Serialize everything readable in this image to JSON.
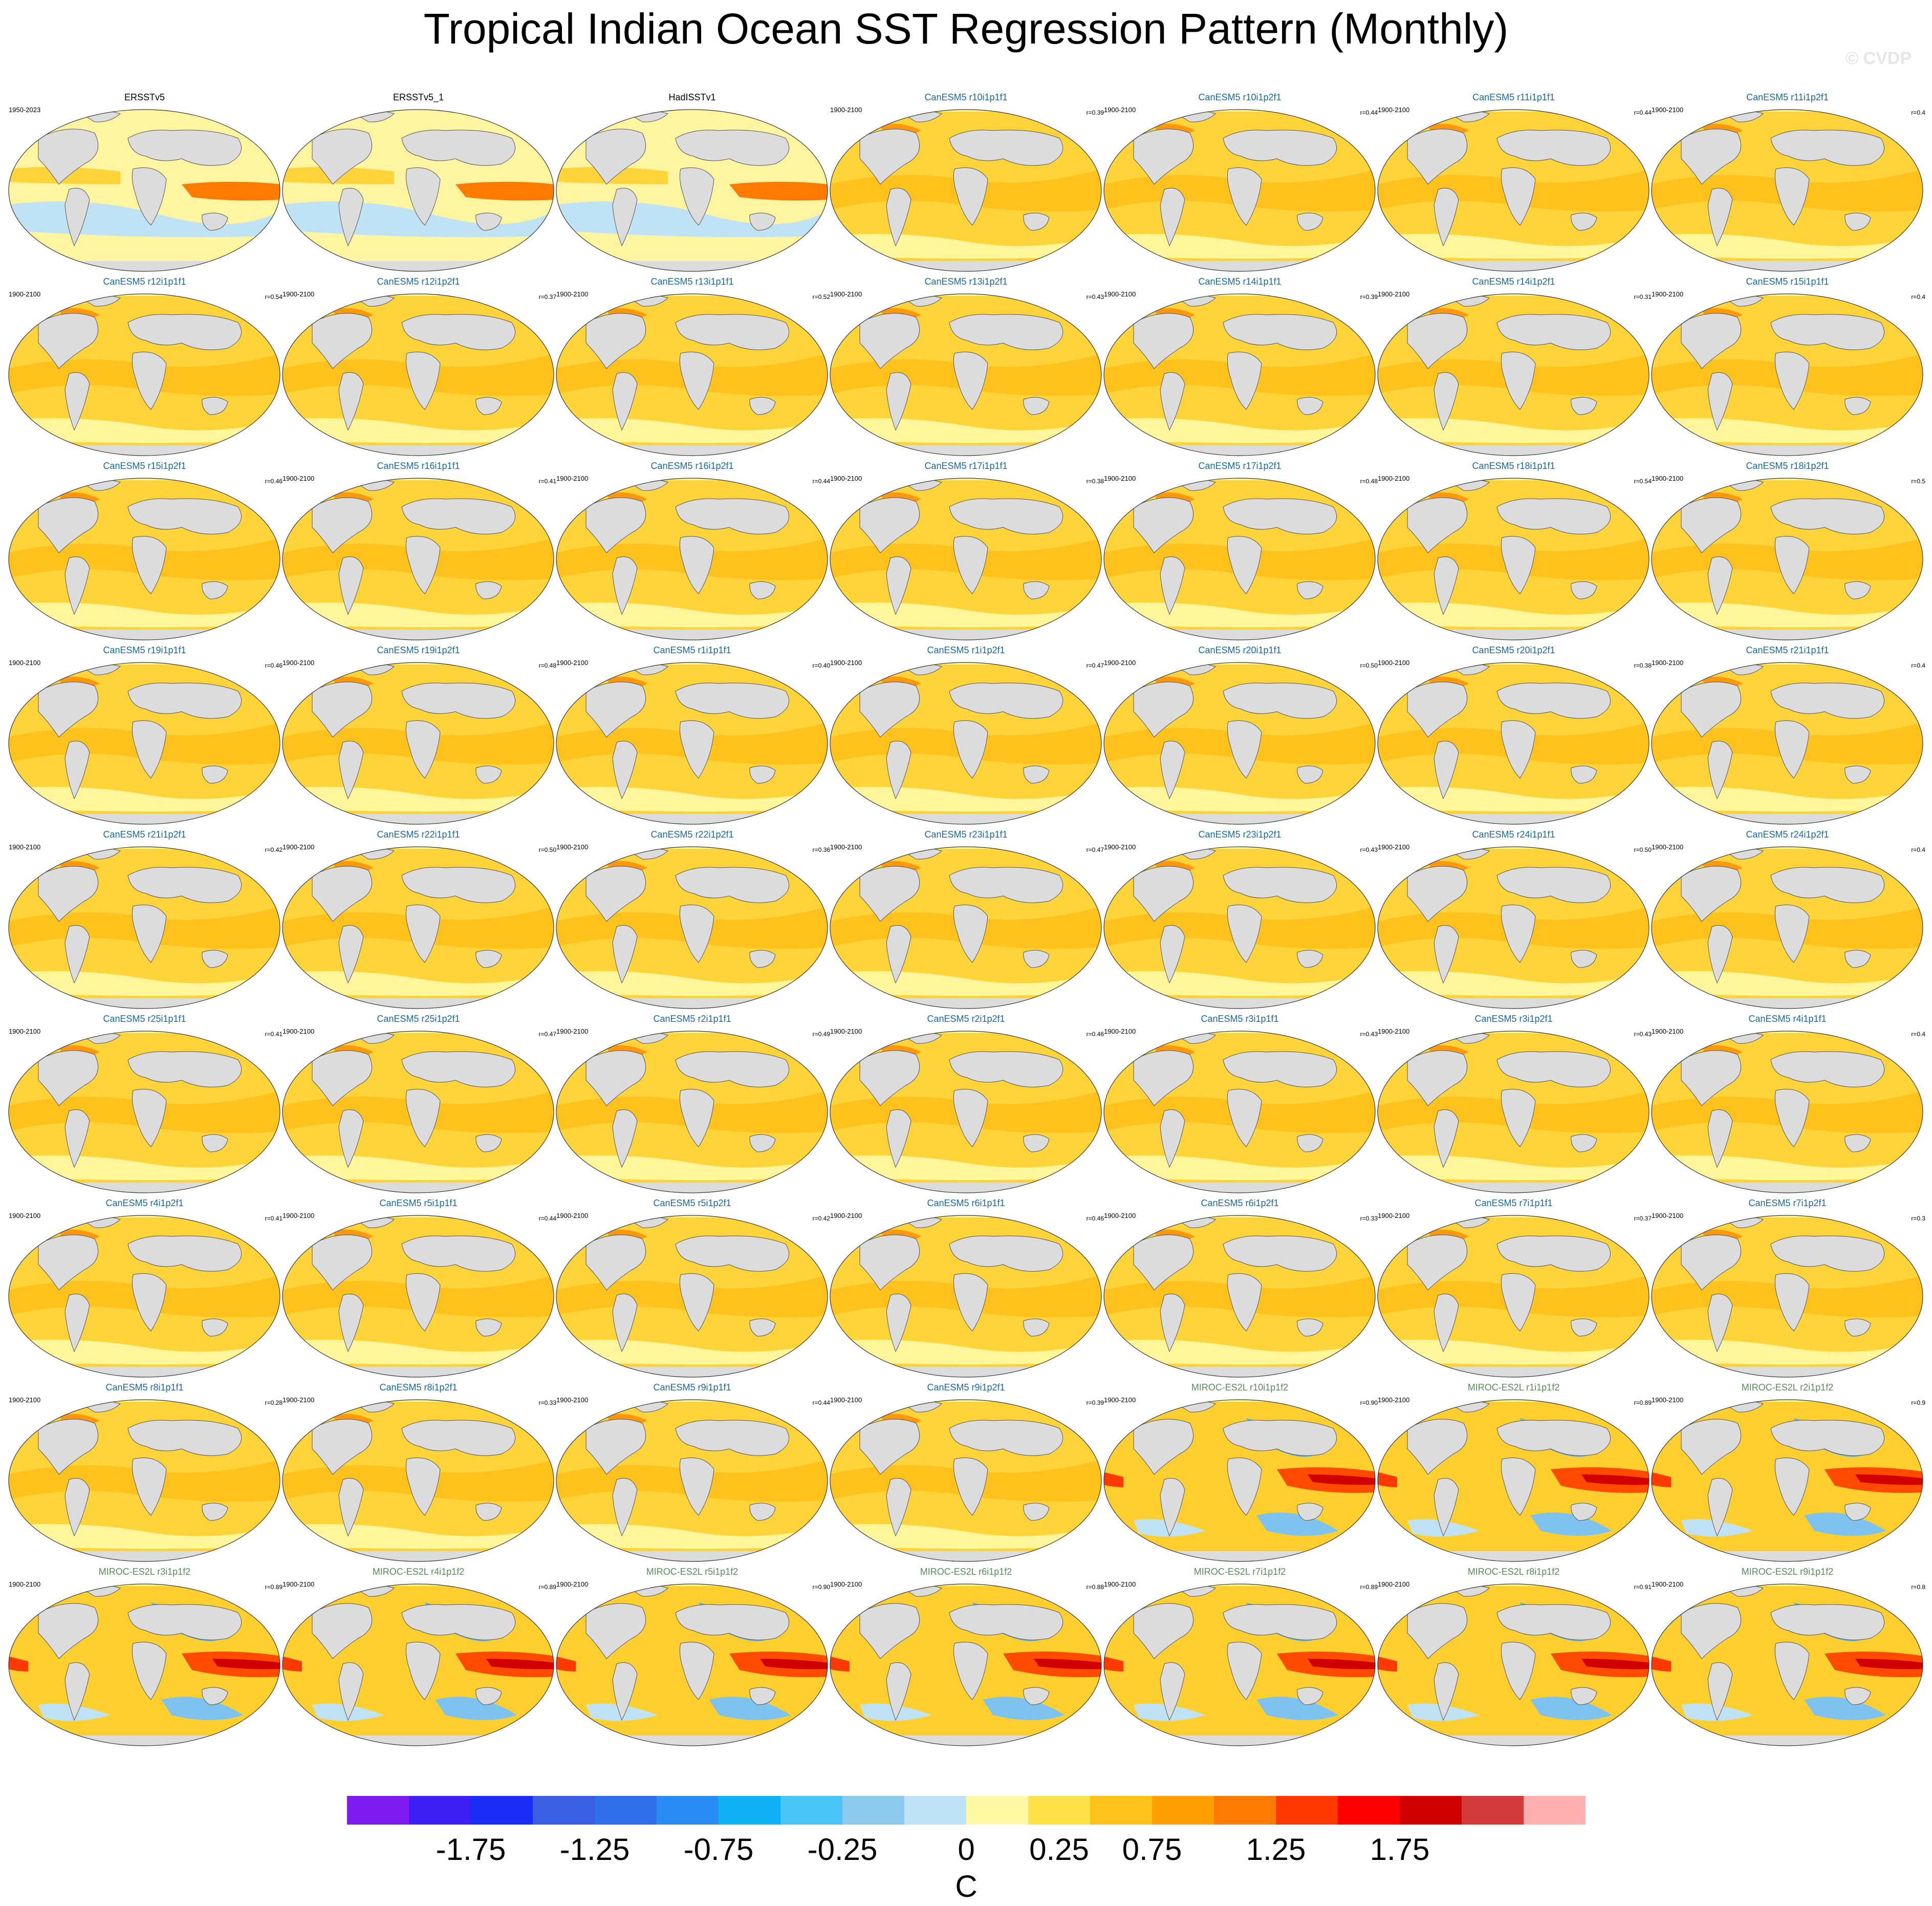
{
  "title": "Tropical Indian Ocean SST Regression Pattern (Monthly)",
  "watermark": "© CVDP",
  "panels": [
    {
      "title": "ERSSTv5",
      "period": "1950-2023",
      "r": "",
      "group": "obs"
    },
    {
      "title": "ERSSTv5_1",
      "period": "",
      "r": "",
      "group": "obs"
    },
    {
      "title": "HadISSTv1",
      "period": "",
      "r": "",
      "group": "obs"
    },
    {
      "title": "CanESM5 r10i1p1f1",
      "period": "1900-2100",
      "r": "r=0.39",
      "group": "canesm"
    },
    {
      "title": "CanESM5 r10i1p2f1",
      "period": "1900-2100",
      "r": "r=0.44",
      "group": "canesm"
    },
    {
      "title": "CanESM5 r11i1p1f1",
      "period": "1900-2100",
      "r": "r=0.44",
      "group": "canesm"
    },
    {
      "title": "CanESM5 r11i1p2f1",
      "period": "1900-2100",
      "r": "r=0.4",
      "group": "canesm"
    },
    {
      "title": "CanESM5 r12i1p1f1",
      "period": "1900-2100",
      "r": "r=0.54",
      "group": "canesm"
    },
    {
      "title": "CanESM5 r12i1p2f1",
      "period": "1900-2100",
      "r": "r=0.37",
      "group": "canesm"
    },
    {
      "title": "CanESM5 r13i1p1f1",
      "period": "1900-2100",
      "r": "r=0.52",
      "group": "canesm"
    },
    {
      "title": "CanESM5 r13i1p2f1",
      "period": "1900-2100",
      "r": "r=0.43",
      "group": "canesm"
    },
    {
      "title": "CanESM5 r14i1p1f1",
      "period": "1900-2100",
      "r": "r=0.39",
      "group": "canesm"
    },
    {
      "title": "CanESM5 r14i1p2f1",
      "period": "1900-2100",
      "r": "r=0.31",
      "group": "canesm"
    },
    {
      "title": "CanESM5 r15i1p1f1",
      "period": "1900-2100",
      "r": "r=0.4",
      "group": "canesm"
    },
    {
      "title": "CanESM5 r15i1p2f1",
      "period": "",
      "r": "r=0.46",
      "group": "canesm"
    },
    {
      "title": "CanESM5 r16i1p1f1",
      "period": "1900-2100",
      "r": "r=0.41",
      "group": "canesm"
    },
    {
      "title": "CanESM5 r16i1p2f1",
      "period": "1900-2100",
      "r": "r=0.44",
      "group": "canesm"
    },
    {
      "title": "CanESM5 r17i1p1f1",
      "period": "1900-2100",
      "r": "r=0.38",
      "group": "canesm"
    },
    {
      "title": "CanESM5 r17i1p2f1",
      "period": "1900-2100",
      "r": "r=0.48",
      "group": "canesm"
    },
    {
      "title": "CanESM5 r18i1p1f1",
      "period": "1900-2100",
      "r": "r=0.54",
      "group": "canesm"
    },
    {
      "title": "CanESM5 r18i1p2f1",
      "period": "1900-2100",
      "r": "r=0.5",
      "group": "canesm"
    },
    {
      "title": "CanESM5 r19i1p1f1",
      "period": "1900-2100",
      "r": "r=0.46",
      "group": "canesm"
    },
    {
      "title": "CanESM5 r19i1p2f1",
      "period": "1900-2100",
      "r": "r=0.48",
      "group": "canesm"
    },
    {
      "title": "CanESM5 r1i1p1f1",
      "period": "1900-2100",
      "r": "r=0.40",
      "group": "canesm"
    },
    {
      "title": "CanESM5 r1i1p2f1",
      "period": "1900-2100",
      "r": "r=0.47",
      "group": "canesm"
    },
    {
      "title": "CanESM5 r20i1p1f1",
      "period": "1900-2100",
      "r": "r=0.50",
      "group": "canesm"
    },
    {
      "title": "CanESM5 r20i1p2f1",
      "period": "1900-2100",
      "r": "r=0.38",
      "group": "canesm"
    },
    {
      "title": "CanESM5 r21i1p1f1",
      "period": "1900-2100",
      "r": "r=0.4",
      "group": "canesm"
    },
    {
      "title": "CanESM5 r21i1p2f1",
      "period": "1900-2100",
      "r": "r=0.42",
      "group": "canesm"
    },
    {
      "title": "CanESM5 r22i1p1f1",
      "period": "1900-2100",
      "r": "r=0.50",
      "group": "canesm"
    },
    {
      "title": "CanESM5 r22i1p2f1",
      "period": "1900-2100",
      "r": "r=0.36",
      "group": "canesm"
    },
    {
      "title": "CanESM5 r23i1p1f1",
      "period": "1900-2100",
      "r": "r=0.47",
      "group": "canesm"
    },
    {
      "title": "CanESM5 r23i1p2f1",
      "period": "1900-2100",
      "r": "r=0.43",
      "group": "canesm"
    },
    {
      "title": "CanESM5 r24i1p1f1",
      "period": "1900-2100",
      "r": "r=0.50",
      "group": "canesm"
    },
    {
      "title": "CanESM5 r24i1p2f1",
      "period": "1900-2100",
      "r": "r=0.4",
      "group": "canesm"
    },
    {
      "title": "CanESM5 r25i1p1f1",
      "period": "1900-2100",
      "r": "r=0.41",
      "group": "canesm"
    },
    {
      "title": "CanESM5 r25i1p2f1",
      "period": "1900-2100",
      "r": "r=0.47",
      "group": "canesm"
    },
    {
      "title": "CanESM5 r2i1p1f1",
      "period": "1900-2100",
      "r": "r=0.49",
      "group": "canesm"
    },
    {
      "title": "CanESM5 r2i1p2f1",
      "period": "1900-2100",
      "r": "r=0.46",
      "group": "canesm"
    },
    {
      "title": "CanESM5 r3i1p1f1",
      "period": "1900-2100",
      "r": "r=0.43",
      "group": "canesm"
    },
    {
      "title": "CanESM5 r3i1p2f1",
      "period": "1900-2100",
      "r": "r=0.43",
      "group": "canesm"
    },
    {
      "title": "CanESM5 r4i1p1f1",
      "period": "1900-2100",
      "r": "r=0.4",
      "group": "canesm"
    },
    {
      "title": "CanESM5 r4i1p2f1",
      "period": "1900-2100",
      "r": "r=0.41",
      "group": "canesm"
    },
    {
      "title": "CanESM5 r5i1p1f1",
      "period": "1900-2100",
      "r": "r=0.44",
      "group": "canesm"
    },
    {
      "title": "CanESM5 r5i1p2f1",
      "period": "1900-2100",
      "r": "r=0.42",
      "group": "canesm"
    },
    {
      "title": "CanESM5 r6i1p1f1",
      "period": "1900-2100",
      "r": "r=0.46",
      "group": "canesm"
    },
    {
      "title": "CanESM5 r6i1p2f1",
      "period": "1900-2100",
      "r": "r=0.33",
      "group": "canesm"
    },
    {
      "title": "CanESM5 r7i1p1f1",
      "period": "1900-2100",
      "r": "r=0.37",
      "group": "canesm"
    },
    {
      "title": "CanESM5 r7i1p2f1",
      "period": "1900-2100",
      "r": "r=0.3",
      "group": "canesm"
    },
    {
      "title": "CanESM5 r8i1p1f1",
      "period": "1900-2100",
      "r": "r=0.28",
      "group": "canesm"
    },
    {
      "title": "CanESM5 r8i1p2f1",
      "period": "1900-2100",
      "r": "r=0.33",
      "group": "canesm"
    },
    {
      "title": "CanESM5 r9i1p1f1",
      "period": "1900-2100",
      "r": "r=0.44",
      "group": "canesm"
    },
    {
      "title": "CanESM5 r9i1p2f1",
      "period": "1900-2100",
      "r": "r=0.39",
      "group": "canesm"
    },
    {
      "title": "MIROC-ES2L r10i1p1f2",
      "period": "1900-2100",
      "r": "r=0.90",
      "group": "miroc"
    },
    {
      "title": "MIROC-ES2L r1i1p1f2",
      "period": "1900-2100",
      "r": "r=0.89",
      "group": "miroc"
    },
    {
      "title": "MIROC-ES2L r2i1p1f2",
      "period": "1900-2100",
      "r": "r=0.9",
      "group": "miroc"
    },
    {
      "title": "MIROC-ES2L r3i1p1f2",
      "period": "1900-2100",
      "r": "r=0.89",
      "group": "miroc"
    },
    {
      "title": "MIROC-ES2L r4i1p1f2",
      "period": "1900-2100",
      "r": "r=0.89",
      "group": "miroc"
    },
    {
      "title": "MIROC-ES2L r5i1p1f2",
      "period": "1900-2100",
      "r": "r=0.90",
      "group": "miroc"
    },
    {
      "title": "MIROC-ES2L r6i1p1f2",
      "period": "1900-2100",
      "r": "r=0.88",
      "group": "miroc"
    },
    {
      "title": "MIROC-ES2L r7i1p1f2",
      "period": "1900-2100",
      "r": "r=0.89",
      "group": "miroc"
    },
    {
      "title": "MIROC-ES2L r8i1p1f2",
      "period": "1900-2100",
      "r": "r=0.91",
      "group": "miroc"
    },
    {
      "title": "MIROC-ES2L r9i1p1f2",
      "period": "1900-2100",
      "r": "r=0.8",
      "group": "miroc"
    }
  ],
  "group_title_colors": {
    "obs": "#000000",
    "canesm": "#1a6a9a",
    "miroc": "#5b8a5b"
  },
  "colorbar": {
    "colors": [
      "#7f1cf0",
      "#3d1ef5",
      "#1a2df5",
      "#3a5fe0",
      "#2f6fe8",
      "#2a8cf5",
      "#10b0f7",
      "#48c4f7",
      "#8ccbee",
      "#bfe3f5",
      "#fff9a5",
      "#ffe14a",
      "#ffc21a",
      "#ff9f00",
      "#ff7a00",
      "#ff3a00",
      "#ff0000",
      "#cf0000",
      "#d23a3a",
      "#ffb0b0"
    ],
    "tick_labels": [
      "-1.75",
      "-1.25",
      "-0.75",
      "-0.25",
      "0",
      "0.25",
      "0.75",
      "1.25",
      "1.75"
    ],
    "unit": "C"
  }
}
